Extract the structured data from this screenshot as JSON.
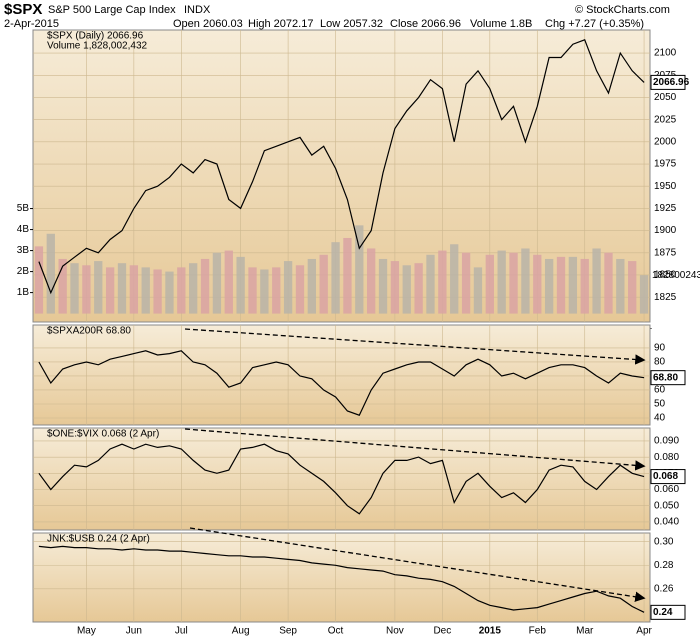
{
  "header": {
    "symbol": "$SPX",
    "name": "S&P 500 Large Cap Index",
    "exchange": "INDX",
    "date": "2-Apr-2015",
    "open": "Open 2060.03",
    "high": "High 2072.17",
    "low": "Low 2057.32",
    "close": "Close 2066.96",
    "volume": "Volume 1.8B",
    "change": "Chg +7.27 (+0.35%)",
    "source": "© StockCharts.com"
  },
  "chart_data": [
    {
      "type": "line",
      "categories": [
        null,
        null,
        null,
        null,
        "May",
        null,
        null,
        null,
        "Jun",
        null,
        null,
        null,
        "Jul",
        null,
        null,
        null,
        null,
        "Aug",
        null,
        null,
        null,
        "Sep",
        null,
        null,
        null,
        "Oct",
        null,
        null,
        null,
        null,
        "Nov",
        null,
        null,
        null,
        "Dec",
        null,
        null,
        null,
        "2015",
        null,
        null,
        null,
        "Feb",
        null,
        null,
        null,
        "Mar",
        null,
        null,
        null,
        null,
        "Apr"
      ],
      "series": [
        {
          "name": "$SPX (Daily) 2066.96",
          "color": "#000000",
          "values": [
            1865,
            1830,
            1860,
            1870,
            1880,
            1875,
            1890,
            1900,
            1925,
            1945,
            1950,
            1960,
            1975,
            1965,
            1980,
            1975,
            1935,
            1925,
            1955,
            1990,
            1995,
            2000,
            2005,
            1985,
            1995,
            1970,
            1935,
            1880,
            1900,
            1965,
            2015,
            2035,
            2050,
            2070,
            2060,
            2000,
            2065,
            2080,
            2060,
            2025,
            2040,
            2000,
            2040,
            2095,
            2095,
            2110,
            2115,
            2080,
            2055,
            2100,
            2080,
            2066.96
          ],
          "last_label": "2066.96"
        },
        {
          "name": "Volume 1,828,002,432",
          "type": "bar",
          "axis": "y2",
          "color": "#d9a3a3",
          "values": [
            3.2,
            3.8,
            2.6,
            2.4,
            2.3,
            2.5,
            2.2,
            2.4,
            2.3,
            2.2,
            2.1,
            2.0,
            2.2,
            2.4,
            2.6,
            2.9,
            3.0,
            2.7,
            2.2,
            2.1,
            2.2,
            2.5,
            2.3,
            2.6,
            2.8,
            3.4,
            3.6,
            4.2,
            3.1,
            2.6,
            2.5,
            2.3,
            2.4,
            2.8,
            3.0,
            3.3,
            2.9,
            2.2,
            2.8,
            3.0,
            2.9,
            3.1,
            2.8,
            2.6,
            2.7,
            2.7,
            2.6,
            3.1,
            2.9,
            2.6,
            2.5,
            1.828002432
          ],
          "last_label": "1828002432"
        }
      ],
      "ylim": [
        1797,
        2126
      ],
      "yticks": [
        1825,
        1850,
        1875,
        1900,
        1925,
        1950,
        1975,
        2000,
        2025,
        2050,
        2075,
        2100
      ],
      "y2lim": [
        -0.4,
        13.5
      ],
      "y2ticks": [
        {
          "value": 1,
          "label": "1B"
        },
        {
          "value": 2,
          "label": "2B"
        },
        {
          "value": 3,
          "label": "3B"
        },
        {
          "value": 4,
          "label": "4B"
        },
        {
          "value": 5,
          "label": "5B"
        }
      ],
      "grid": true
    },
    {
      "type": "line",
      "series": [
        {
          "name": "$SPXA200R 68.80",
          "color": "#000000",
          "values": [
            80,
            65,
            75,
            78,
            80,
            78,
            82,
            84,
            86,
            88,
            85,
            86,
            88,
            80,
            78,
            72,
            62,
            65,
            76,
            78,
            80,
            78,
            70,
            68,
            60,
            55,
            45,
            42,
            60,
            72,
            75,
            78,
            80,
            80,
            75,
            70,
            78,
            82,
            78,
            70,
            72,
            68,
            72,
            76,
            78,
            78,
            76,
            70,
            65,
            72,
            70,
            68.8
          ],
          "last_label": "68.80"
        }
      ],
      "ylim": [
        35,
        106.4
      ],
      "yticks": [
        40,
        50,
        60,
        70,
        80,
        90
      ],
      "grid": true
    },
    {
      "type": "line",
      "series": [
        {
          "name": "$ONE:$VIX 0.068 (2 Apr)",
          "color": "#000000",
          "values": [
            0.07,
            0.06,
            0.068,
            0.075,
            0.074,
            0.078,
            0.085,
            0.088,
            0.085,
            0.088,
            0.086,
            0.087,
            0.085,
            0.078,
            0.072,
            0.07,
            0.072,
            0.085,
            0.086,
            0.088,
            0.084,
            0.082,
            0.075,
            0.07,
            0.065,
            0.058,
            0.05,
            0.045,
            0.055,
            0.07,
            0.078,
            0.078,
            0.08,
            0.076,
            0.078,
            0.052,
            0.065,
            0.07,
            0.062,
            0.055,
            0.058,
            0.052,
            0.06,
            0.072,
            0.075,
            0.074,
            0.065,
            0.06,
            0.068,
            0.075,
            0.07,
            0.068
          ],
          "last_label": "0.068"
        }
      ],
      "ylim": [
        0.035,
        0.098
      ],
      "yticks": [
        {
          "value": 0.04,
          "label": "0.040"
        },
        {
          "value": 0.05,
          "label": "0.050"
        },
        {
          "value": 0.06,
          "label": "0.060"
        },
        {
          "value": 0.07,
          "label": "0.070"
        },
        {
          "value": 0.08,
          "label": "0.080"
        },
        {
          "value": 0.09,
          "label": "0.090"
        }
      ],
      "grid": true
    },
    {
      "type": "line",
      "categories": [
        null,
        null,
        null,
        null,
        "May",
        null,
        null,
        null,
        "Jun",
        null,
        null,
        null,
        "Jul",
        null,
        null,
        null,
        null,
        "Aug",
        null,
        null,
        null,
        "Sep",
        null,
        null,
        null,
        "Oct",
        null,
        null,
        null,
        null,
        "Nov",
        null,
        null,
        null,
        "Dec",
        null,
        null,
        null,
        "2015",
        null,
        null,
        null,
        "Feb",
        null,
        null,
        null,
        "Mar",
        null,
        null,
        null,
        null,
        "Apr"
      ],
      "series": [
        {
          "name": "JNK:$USB 0.24 (2 Apr)",
          "color": "#000000",
          "values": [
            0.296,
            0.295,
            0.296,
            0.295,
            0.295,
            0.294,
            0.294,
            0.293,
            0.294,
            0.293,
            0.293,
            0.292,
            0.292,
            0.291,
            0.29,
            0.289,
            0.288,
            0.288,
            0.287,
            0.287,
            0.286,
            0.285,
            0.284,
            0.282,
            0.281,
            0.28,
            0.278,
            0.277,
            0.276,
            0.275,
            0.272,
            0.271,
            0.269,
            0.268,
            0.266,
            0.262,
            0.256,
            0.25,
            0.246,
            0.244,
            0.242,
            0.243,
            0.244,
            0.247,
            0.25,
            0.253,
            0.256,
            0.258,
            0.254,
            0.252,
            0.245,
            0.24
          ],
          "last_label": "0.24"
        }
      ],
      "ylim": [
        0.2318,
        0.3074
      ],
      "yticks": [
        {
          "value": 0.26,
          "label": "0.26"
        },
        {
          "value": 0.28,
          "label": "0.28"
        },
        {
          "value": 0.3,
          "label": "0.30"
        }
      ],
      "grid": true
    }
  ]
}
